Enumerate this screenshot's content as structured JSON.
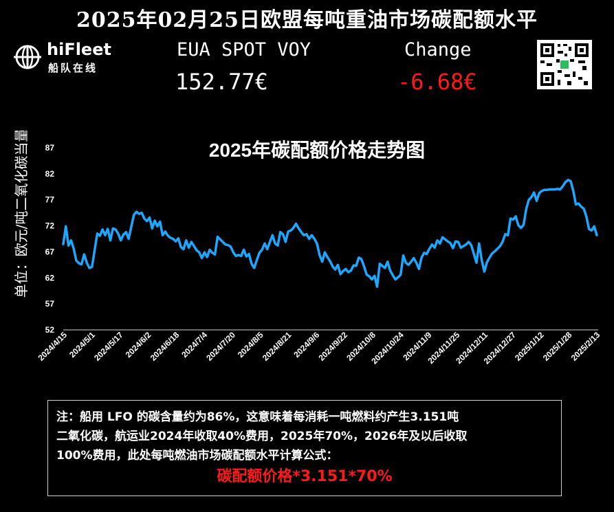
{
  "header": {
    "title": "2025年02月25日欧盟每吨重油市场碳配额水平",
    "logo_name": "hiFleet",
    "logo_sub": "船队在线",
    "eua_label": "EUA SPOT VOY",
    "eua_value": "152.77€",
    "change_label": "Change",
    "change_value": "-6.68€",
    "change_color": "#ff1a1a"
  },
  "chart_data": {
    "type": "line",
    "title": "2025年碳配额价格走势图",
    "ylabel": "单位：欧元/吨二氧化碳当量",
    "xlabel": "",
    "ylim": [
      52,
      87
    ],
    "yticks": [
      52,
      57,
      62,
      67,
      72,
      77,
      82,
      87
    ],
    "xticks": [
      "2024/4/15",
      "2024/5/1",
      "2024/5/17",
      "2024/6/2",
      "2024/6/18",
      "2024/7/4",
      "2024/7/20",
      "2024/8/5",
      "2024/8/21",
      "2024/9/6",
      "2024/9/22",
      "2024/10/8",
      "2024/10/24",
      "2024/11/9",
      "2024/11/25",
      "2024/12/11",
      "2024/12/27",
      "2025/1/12",
      "2025/1/28",
      "2025/2/13"
    ],
    "line_color": "#1ea7ff",
    "grid": false,
    "series": [
      {
        "values": [
          68.5,
          71.9,
          68.2,
          69.2,
          67.6,
          65.3,
          64.8,
          64.6,
          66.5,
          64.9,
          63.9,
          64.1,
          67.3,
          70.5,
          70.1,
          71.3,
          70.2,
          71.4,
          69.2,
          71.5,
          71.3,
          70.5,
          69.2,
          70.3,
          70.8,
          69.5,
          71.8,
          74.1,
          74.7,
          74.3,
          74.5,
          73.4,
          72.9,
          73.6,
          71.5,
          73.0,
          71.9,
          72.8,
          70.2,
          70.9,
          70.1,
          69.7,
          69.5,
          69.0,
          69.6,
          67.9,
          67.5,
          69.2,
          67.8,
          68.9,
          68.1,
          67.3,
          66.9,
          65.8,
          66.9,
          66.0,
          67.4,
          66.8,
          66.5,
          69.9,
          69.4,
          68.9,
          68.4,
          68.3,
          68.0,
          66.9,
          66.2,
          66.4,
          66.2,
          67.4,
          66.1,
          66.6,
          64.7,
          63.9,
          65.4,
          66.8,
          67.4,
          68.6,
          67.5,
          68.9,
          70.2,
          68.6,
          68.2,
          70.8,
          70.4,
          68.9,
          70.9,
          71.1,
          71.6,
          72.4,
          71.5,
          70.8,
          70.2,
          70.4,
          69.5,
          70.2,
          69.5,
          68.6,
          66.4,
          65.1,
          66.9,
          66.0,
          65.2,
          64.2,
          63.6,
          64.5,
          62.7,
          63.3,
          63.7,
          63.1,
          63.4,
          64.4,
          64.3,
          65.9,
          65.6,
          64.2,
          62.6,
          62.3,
          61.7,
          62.4,
          60.3,
          64.7,
          64.3,
          63.9,
          65.1,
          63.4,
          62.5,
          61.7,
          62.1,
          62.6,
          66.3,
          64.9,
          64.5,
          65.1,
          65.8,
          64.9,
          63.7,
          65.9,
          66.8,
          66.6,
          67.6,
          68.4,
          67.8,
          69.2,
          68.6,
          69.8,
          69.4,
          69.0,
          68.7,
          67.7,
          69.0,
          68.9,
          67.8,
          68.1,
          68.4,
          68.9,
          68.3,
          66.6,
          64.9,
          68.6,
          65.4,
          63.2,
          65.0,
          65.9,
          66.7,
          67.1,
          67.6,
          68.1,
          69.0,
          70.4,
          70.2,
          73.4,
          73.2,
          73.8,
          72.1,
          71.6,
          72.2,
          75.2,
          77.0,
          77.5,
          78.4,
          76.8,
          78.3,
          78.7,
          78.9,
          78.9,
          79.0,
          79.0,
          79.0,
          79.1,
          79.0,
          79.6,
          80.4,
          80.8,
          80.6,
          78.7,
          76.1,
          76.3,
          75.7,
          75.3,
          73.8,
          71.4,
          71.1,
          71.9,
          70.2
        ]
      }
    ]
  },
  "note": {
    "line1": "注：船用 LFO 的碳含量约为86%，这意味着每消耗一吨燃料约产生3.151吨",
    "line2": "二氧化碳，航运业2024年收取40%费用，2025年70%，2026年及以后收取",
    "line3": "100%费用，此处每吨燃油市场碳配额水平计算公式：",
    "formula": "碳配额价格*3.151*70%",
    "formula_color": "#ff1a1a"
  }
}
